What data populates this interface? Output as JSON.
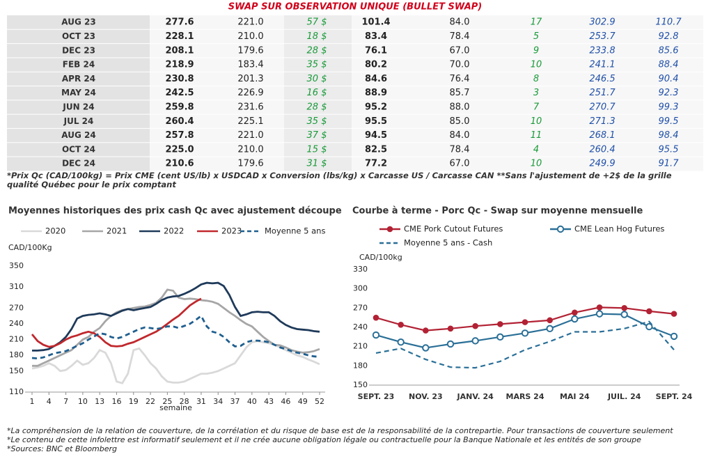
{
  "title": "SWAP SUR OBSERVATION UNIQUE (BULLET SWAP)",
  "table": {
    "rows": [
      [
        "AUG 23",
        "277.6",
        "221.0",
        "57 $",
        "101.4",
        "84.0",
        "17",
        "302.9",
        "110.7"
      ],
      [
        "OCT 23",
        "228.1",
        "210.0",
        "18 $",
        "83.4",
        "78.4",
        "5",
        "253.7",
        "92.8"
      ],
      [
        "DEC 23",
        "208.1",
        "179.6",
        "28 $",
        "76.1",
        "67.0",
        "9",
        "233.8",
        "85.6"
      ],
      [
        "FEB 24",
        "218.9",
        "183.4",
        "35 $",
        "80.2",
        "70.0",
        "10",
        "241.1",
        "88.4"
      ],
      [
        "APR 24",
        "230.8",
        "201.3",
        "30 $",
        "84.6",
        "76.4",
        "8",
        "246.5",
        "90.4"
      ],
      [
        "MAY 24",
        "242.5",
        "226.9",
        "16 $",
        "88.9",
        "85.7",
        "3",
        "251.7",
        "92.3"
      ],
      [
        "JUN 24",
        "259.8",
        "231.6",
        "28 $",
        "95.2",
        "88.0",
        "7",
        "270.7",
        "99.3"
      ],
      [
        "JUL 24",
        "260.4",
        "225.1",
        "35 $",
        "95.5",
        "85.0",
        "10",
        "271.3",
        "99.5"
      ],
      [
        "AUG 24",
        "257.8",
        "221.0",
        "37 $",
        "94.5",
        "84.0",
        "11",
        "268.1",
        "98.4"
      ],
      [
        "OCT 24",
        "225.0",
        "210.0",
        "15 $",
        "82.5",
        "78.4",
        "4",
        "260.4",
        "95.5"
      ],
      [
        "DEC 24",
        "210.6",
        "179.6",
        "31 $",
        "77.2",
        "67.0",
        "10",
        "249.9",
        "91.7"
      ]
    ]
  },
  "footnote": "*Prix Qc (CAD/100kg) = Prix CME (cent US/lb) x USDCAD x Conversion (lbs/kg) x Carcasse US / Carcasse CAN **Sans l'ajustement de +2$ de la grille qualité Québec pour le prix comptant",
  "chart_data": [
    {
      "type": "line",
      "title": "Moyennes historiques des prix cash Qc avec ajustement découpe",
      "ylabel": "CAD/100Kg",
      "xlabel": "semaine",
      "x": [
        1,
        2,
        3,
        4,
        5,
        6,
        7,
        8,
        9,
        10,
        11,
        12,
        13,
        14,
        15,
        16,
        17,
        18,
        19,
        20,
        21,
        22,
        23,
        24,
        25,
        26,
        27,
        28,
        29,
        30,
        31,
        32,
        33,
        34,
        35,
        36,
        37,
        38,
        39,
        40,
        41,
        42,
        43,
        44,
        45,
        46,
        47,
        48,
        49,
        50,
        51,
        52
      ],
      "xlim": [
        1,
        52
      ],
      "xticks": [
        1,
        4,
        7,
        10,
        13,
        16,
        19,
        22,
        25,
        28,
        31,
        34,
        37,
        40,
        43,
        46,
        49,
        52
      ],
      "ylim": [
        110,
        350
      ],
      "yticks": [
        110,
        150,
        180,
        210,
        240,
        270,
        310,
        350
      ],
      "series": [
        {
          "name": "2020",
          "color": "#d9d9d9",
          "values": [
            155,
            157,
            160,
            165,
            160,
            150,
            152,
            160,
            170,
            162,
            165,
            175,
            190,
            185,
            165,
            130,
            127,
            145,
            190,
            193,
            180,
            165,
            155,
            140,
            130,
            128,
            128,
            130,
            135,
            140,
            145,
            145,
            147,
            150,
            155,
            160,
            165,
            180,
            195,
            205,
            207,
            205,
            203,
            200,
            195,
            190,
            185,
            180,
            177,
            172,
            168,
            163
          ]
        },
        {
          "name": "2021",
          "color": "#a6a6a6",
          "values": [
            160,
            160,
            165,
            170,
            175,
            180,
            185,
            190,
            200,
            210,
            215,
            225,
            232,
            245,
            255,
            262,
            266,
            268,
            270,
            272,
            273,
            276,
            280,
            290,
            305,
            303,
            290,
            287,
            288,
            287,
            285,
            284,
            282,
            278,
            270,
            262,
            255,
            247,
            240,
            235,
            225,
            215,
            207,
            200,
            199,
            195,
            190,
            187,
            185,
            186,
            188,
            192
          ]
        },
        {
          "name": "2022",
          "color": "#1f3a5a",
          "values": [
            189,
            189,
            190,
            192,
            198,
            205,
            215,
            230,
            250,
            255,
            257,
            258,
            260,
            258,
            255,
            260,
            265,
            268,
            266,
            268,
            270,
            272,
            278,
            285,
            290,
            292,
            293,
            297,
            302,
            308,
            315,
            318,
            317,
            318,
            312,
            295,
            272,
            255,
            258,
            262,
            263,
            262,
            262,
            255,
            245,
            238,
            233,
            230,
            229,
            228,
            226,
            225
          ]
        },
        {
          "name": "2023",
          "color": "#c0282d",
          "values": [
            220,
            207,
            200,
            196,
            198,
            203,
            210,
            215,
            218,
            222,
            225,
            222,
            215,
            205,
            198,
            197,
            198,
            202,
            205,
            210,
            215,
            220,
            225,
            232,
            240,
            248,
            255,
            265,
            275,
            282,
            288,
            null,
            null,
            null,
            null,
            null,
            null,
            null,
            null,
            null,
            null,
            null,
            null,
            null,
            null,
            null,
            null,
            null,
            null,
            null,
            null,
            null
          ]
        },
        {
          "name": "Moyenne 5 ans",
          "color": "#1f5f8f",
          "dash": true,
          "values": [
            175,
            174,
            176,
            180,
            184,
            186,
            188,
            193,
            198,
            203,
            210,
            216,
            222,
            220,
            215,
            212,
            215,
            220,
            225,
            230,
            233,
            232,
            230,
            232,
            235,
            235,
            232,
            236,
            240,
            247,
            255,
            235,
            225,
            222,
            215,
            205,
            197,
            198,
            205,
            208,
            208,
            207,
            205,
            200,
            195,
            192,
            188,
            185,
            183,
            180,
            178,
            177
          ]
        }
      ]
    },
    {
      "type": "line",
      "title": "Courbe à terme - Porc Qc - Swap sur moyenne mensuelle",
      "ylabel": "CAD/100kg",
      "categories": [
        "SEPT. 23",
        null,
        "NOV. 23",
        null,
        "JANV. 24",
        null,
        "MARS 24",
        null,
        "MAI 24",
        null,
        "JUIL. 24",
        null,
        "SEPT. 24"
      ],
      "ylim": [
        150,
        330
      ],
      "yticks": [
        150,
        180,
        210,
        240,
        270,
        300,
        330
      ],
      "series": [
        {
          "name": "CME Pork Cutout Futures",
          "color": "#b22234",
          "marker": "filled",
          "values": [
            255,
            244,
            235,
            238,
            242,
            245,
            248,
            251,
            263,
            271,
            270,
            265,
            261
          ]
        },
        {
          "name": "CME Lean Hog Futures",
          "color": "#2a6f97",
          "marker": "hollow",
          "values": [
            228,
            217,
            208,
            214,
            219,
            225,
            231,
            238,
            253,
            261,
            260,
            241,
            226
          ]
        },
        {
          "name": "Moyenne 5 ans - Cash",
          "color": "#2a6f97",
          "dash": true,
          "values": [
            200,
            207,
            190,
            178,
            177,
            187,
            205,
            218,
            233,
            233,
            238,
            249,
            205
          ]
        }
      ]
    }
  ],
  "notes": [
    "*La compréhension de la relation de couverture, de la corrélation et du risque de base est de la responsabilité de la contrepartie. Pour transactions de couverture seulement",
    "*Le contenu de cette infolettre est informatif seulement et il ne crée aucune obligation légale ou contractuelle pour la Banque Nationale et les entités de son groupe",
    "*Sources: BNC et Bloomberg"
  ]
}
